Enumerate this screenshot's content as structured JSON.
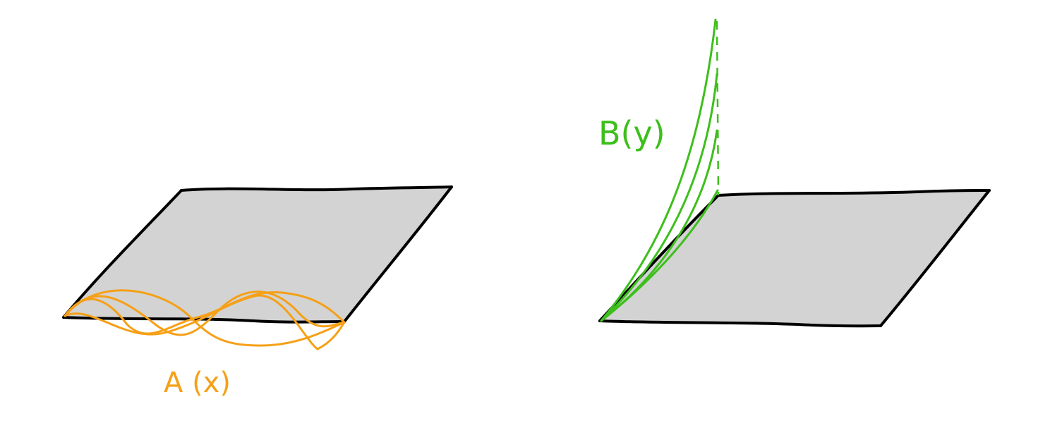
{
  "colors": {
    "background": "#ffffff",
    "plane_fill": "#d3d3d3",
    "plane_edge": "#000000",
    "a_curve": "#f5a017",
    "b_curve": "#3dbf1b"
  },
  "left_panel": {
    "label": "A (x)"
  },
  "right_panel": {
    "label": "B(y)"
  }
}
